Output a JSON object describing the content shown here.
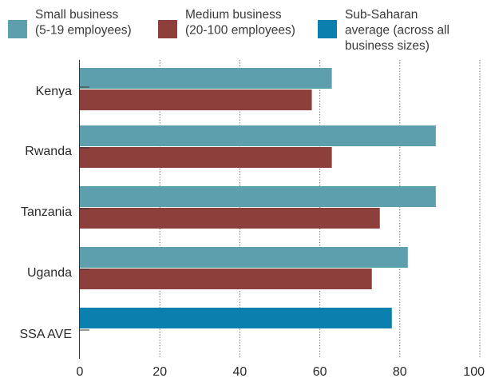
{
  "chart_data": {
    "type": "bar",
    "orientation": "horizontal",
    "categories": [
      "Kenya",
      "Rwanda",
      "Tanzania",
      "Uganda",
      "SSA AVE"
    ],
    "series": [
      {
        "name": "Small business\n(5-19 employees)",
        "color": "#5e9fad",
        "values": [
          63,
          89,
          89,
          82,
          null
        ]
      },
      {
        "name": "Medium business\n(20-100 employees)",
        "color": "#8d3f3c",
        "values": [
          58,
          63,
          75,
          73,
          null
        ]
      },
      {
        "name": "Sub-Saharan\naverage (across all\nbusiness sizes)",
        "color": "#0b7fad",
        "values": [
          null,
          null,
          null,
          null,
          78
        ]
      }
    ],
    "xlim": [
      0,
      100
    ],
    "xticks": [
      "0",
      "20",
      "40",
      "60",
      "80",
      "100"
    ],
    "grid": "vertical dotted",
    "legend_position": "top"
  }
}
